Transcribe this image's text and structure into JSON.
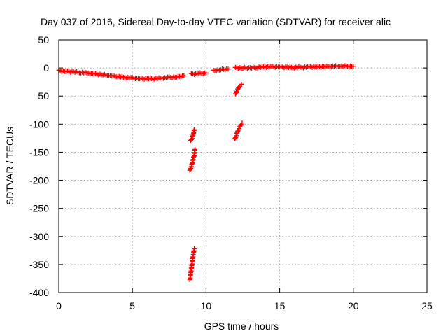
{
  "chart_data": {
    "type": "scatter",
    "title": "Day 037 of 2016, Sidereal Day-to-day VTEC variation (SDTVAR) for receiver alic",
    "xlabel": "GPS time / hours",
    "ylabel": "SDTVAR / TECUs",
    "xlim": [
      0,
      25
    ],
    "ylim": [
      -400,
      50
    ],
    "x_ticks": [
      0,
      5,
      10,
      15,
      20,
      25
    ],
    "y_ticks": [
      50,
      0,
      -50,
      -100,
      -150,
      -200,
      -250,
      -300,
      -350,
      -400
    ],
    "x_tick_labels": [
      "0",
      "5",
      "10",
      "15",
      "20",
      "25"
    ],
    "y_tick_labels": [
      "50",
      "0",
      "-50",
      "-100",
      "-150",
      "-200",
      "-250",
      "-300",
      "-350",
      "-400"
    ],
    "grid": true,
    "marker": "plus",
    "color": "#ff0000",
    "series": [
      {
        "segments": [
          {
            "x": [
              0.0,
              0.5,
              1.0,
              1.5,
              2.0,
              2.5,
              3.0,
              3.5,
              4.0,
              4.5,
              5.0,
              5.5,
              6.0,
              6.5,
              7.0,
              7.5,
              8.0,
              8.5
            ],
            "y": [
              -5,
              -6,
              -7,
              -8,
              -9,
              -11,
              -12,
              -14,
              -15,
              -17,
              -18,
              -19,
              -19,
              -19,
              -18,
              -17,
              -16,
              -14
            ]
          },
          {
            "x": [
              9.0,
              9.5,
              10.0
            ],
            "y": [
              -11,
              -10,
              -9
            ]
          },
          {
            "x": [
              10.5,
              11.0,
              11.5
            ],
            "y": [
              -5,
              -3,
              -2
            ]
          },
          {
            "x": [
              12.0,
              12.5,
              13.0,
              13.5,
              14.0,
              14.5,
              15.0,
              15.5,
              16.0,
              16.5,
              17.0,
              17.5,
              18.0,
              18.5,
              19.0,
              19.5,
              20.0
            ],
            "y": [
              0,
              0,
              0,
              1,
              2,
              2,
              2,
              1,
              1,
              1,
              2,
              2,
              2,
              3,
              3,
              3,
              3
            ]
          },
          {
            "x": [
              8.95,
              9.05,
              9.15,
              9.2
            ],
            "y": [
              -130,
              -125,
              -117,
              -110
            ]
          },
          {
            "x": [
              8.9,
              9.0,
              9.1,
              9.2,
              9.25
            ],
            "y": [
              -183,
              -175,
              -165,
              -155,
              -145
            ]
          },
          {
            "x": [
              8.9,
              8.95,
              9.0,
              9.05,
              9.1,
              9.15,
              9.2
            ],
            "y": [
              -378,
              -368,
              -358,
              -348,
              -338,
              -330,
              -322
            ]
          },
          {
            "x": [
              12.0,
              12.1,
              12.2,
              12.3,
              12.4
            ],
            "y": [
              -47,
              -41,
              -36,
              -32,
              -29
            ]
          },
          {
            "x": [
              11.95,
              12.05,
              12.15,
              12.25,
              12.35,
              12.45
            ],
            "y": [
              -127,
              -120,
              -113,
              -107,
              -102,
              -98
            ]
          }
        ]
      }
    ]
  }
}
